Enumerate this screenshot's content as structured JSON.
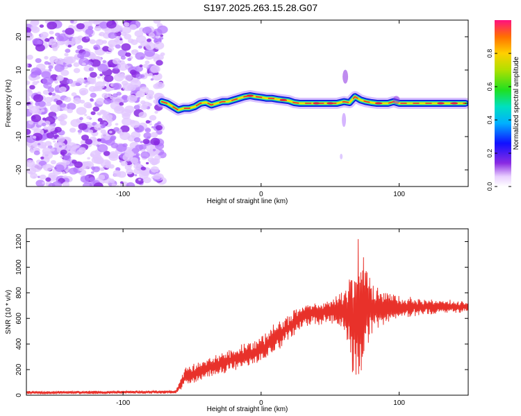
{
  "figure_title": "S197.2025.263.15.28.G07",
  "colors": {
    "line": "#e8312a",
    "speckle": "#8a2be2",
    "ridge_outer": "#1020e0",
    "ridge_mid": "#20e0b0",
    "ridge_inner": "#f0e000",
    "ridge_core": "#e8203a"
  },
  "chart_data": [
    {
      "type": "heatmap",
      "name": "spectrogram",
      "xlabel": "Height of straight line (km)",
      "ylabel": "Frequency (Hz)",
      "xlim": [
        -170,
        150
      ],
      "ylim": [
        -25,
        25
      ],
      "xticks": [
        -100,
        0,
        100
      ],
      "yticks": [
        -20,
        -10,
        0,
        10,
        20
      ],
      "noise_region_x": [
        -170,
        -71
      ],
      "ridge": {
        "x": [
          -72,
          -68,
          -64,
          -60,
          -56,
          -52,
          -48,
          -44,
          -40,
          -36,
          -32,
          -28,
          -24,
          -20,
          -16,
          -12,
          -8,
          -4,
          0,
          4,
          8,
          12,
          16,
          20,
          24,
          28,
          40,
          55,
          60,
          64,
          68,
          72,
          76,
          80,
          84,
          88,
          92,
          96,
          100,
          104,
          120,
          148
        ],
        "y": [
          0.5,
          0.0,
          -1.0,
          -2.0,
          -1.5,
          -1.5,
          -1.0,
          0.0,
          0.3,
          -0.5,
          0.0,
          0.5,
          0.5,
          1.0,
          1.5,
          2.0,
          2.3,
          2.0,
          1.8,
          1.5,
          1.5,
          1.2,
          1.0,
          0.8,
          0.2,
          0.0,
          0.0,
          0.0,
          0.5,
          0.2,
          2.0,
          1.0,
          0.5,
          0.2,
          0.0,
          0.0,
          0.0,
          0.5,
          0.0,
          0.0,
          0.0,
          0.0
        ]
      },
      "colorbar": {
        "label": "Normalized spectral amplitude",
        "range": [
          0,
          1
        ],
        "ticks": [
          0.0,
          0.2,
          0.4,
          0.6,
          0.8
        ]
      }
    },
    {
      "type": "line",
      "name": "snr",
      "xlabel": "Height of straight line (km)",
      "ylabel": "SNR (10 * v/v)",
      "xlim": [
        -170,
        150
      ],
      "ylim": [
        0,
        1300
      ],
      "xticks": [
        -100,
        0,
        100
      ],
      "yticks": [
        0,
        200,
        400,
        600,
        800,
        1000,
        1200
      ],
      "envelope": {
        "x": [
          -170,
          -62,
          -55,
          -40,
          -20,
          0,
          20,
          30,
          50,
          60,
          66,
          70,
          74,
          80,
          90,
          100,
          120,
          150
        ],
        "mean": [
          20,
          25,
          140,
          210,
          280,
          360,
          530,
          620,
          660,
          650,
          640,
          650,
          640,
          680,
          690,
          690,
          690,
          690
        ],
        "amp": [
          12,
          12,
          70,
          75,
          85,
          95,
          95,
          90,
          80,
          150,
          450,
          580,
          420,
          200,
          130,
          80,
          55,
          40
        ]
      }
    }
  ]
}
